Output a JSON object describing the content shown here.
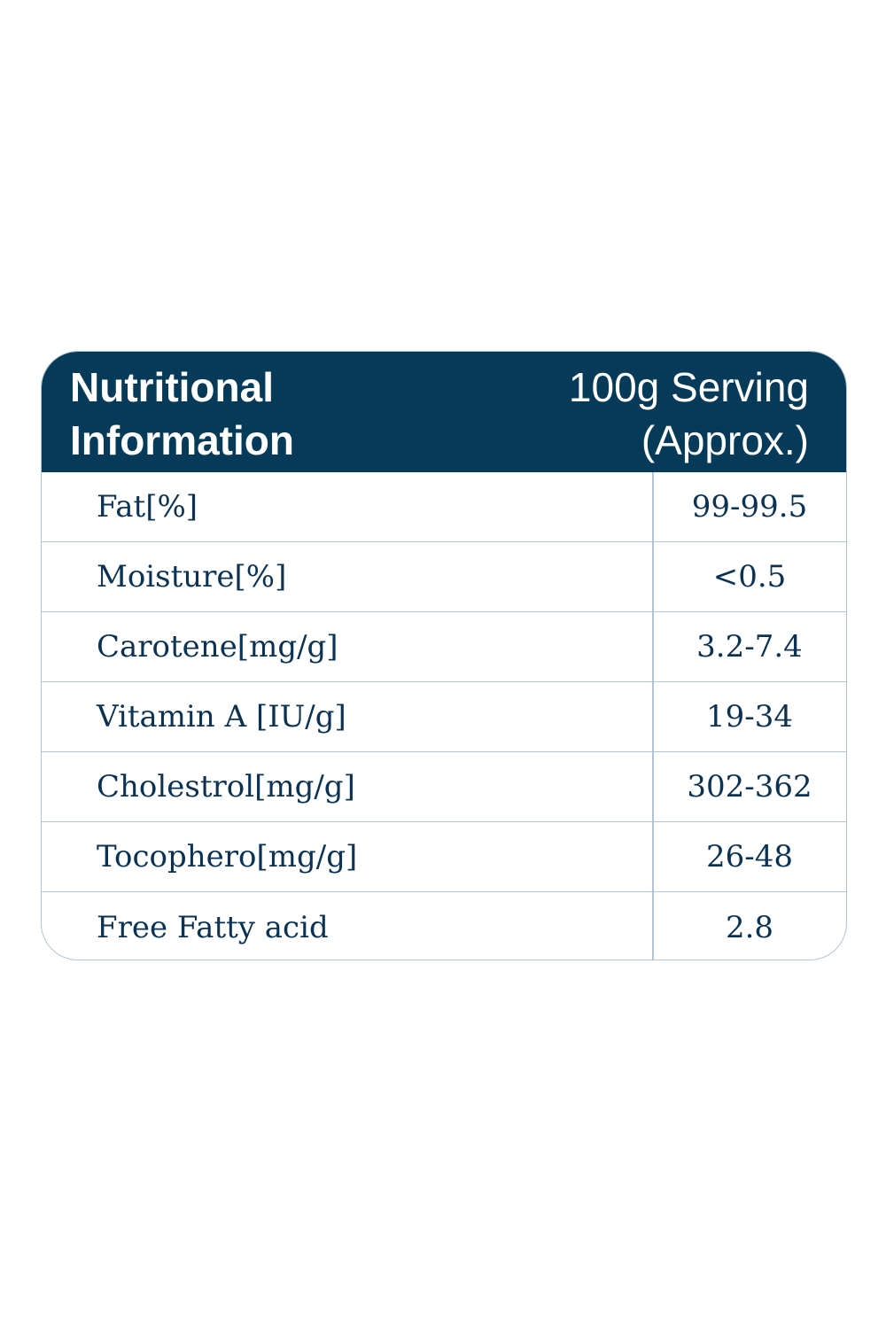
{
  "header": {
    "title_line1": "Nutritional",
    "title_line2": "Information",
    "serving_line1": "100g Serving",
    "serving_line2": "(Approx.)"
  },
  "rows": [
    {
      "label": "Fat[%]",
      "value": "99-99.5"
    },
    {
      "label": "Moisture[%]",
      "value": "<0.5"
    },
    {
      "label": "Carotene[mg/g]",
      "value": "3.2-7.4"
    },
    {
      "label": "Vitamin A [IU/g]",
      "value": "19-34"
    },
    {
      "label": "Cholestrol[mg/g]",
      "value": "302-362"
    },
    {
      "label": "Tocophero[mg/g]",
      "value": "26-48"
    },
    {
      "label": "Free Fatty acid",
      "value": "2.8"
    }
  ],
  "colors": {
    "header_bg": "#063a59",
    "text": "#0b3252",
    "border": "#b3c3d1"
  }
}
